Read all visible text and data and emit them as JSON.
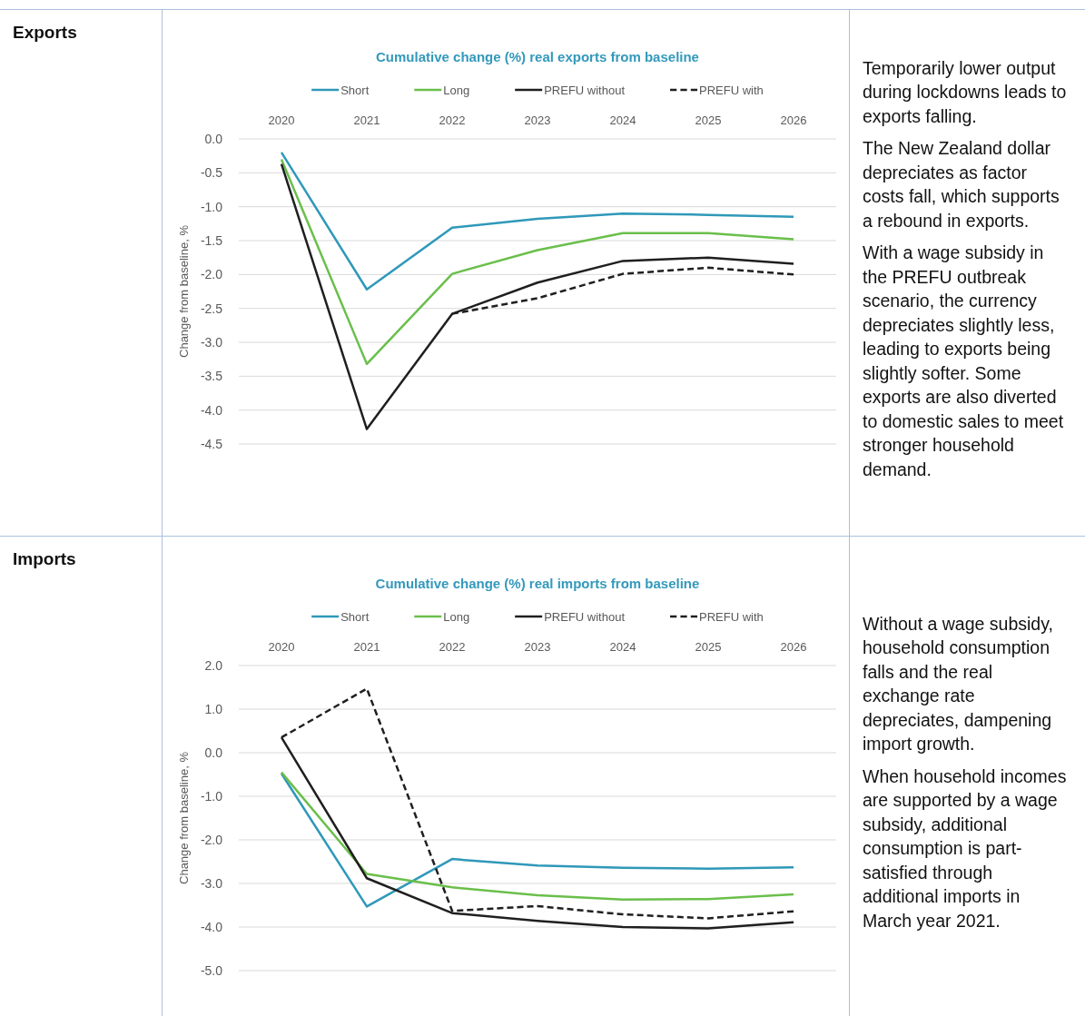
{
  "chart_data": [
    {
      "type": "other",
      "title": "Exports"
    },
    {
      "type": "line",
      "title": "Cumulative change (%) real exports from baseline",
      "ylabel": "Change from baseline, %",
      "categories": [
        "2020",
        "2021",
        "2022",
        "2023",
        "2024",
        "2025",
        "2026"
      ],
      "series": [
        {
          "name": "Short",
          "color": "#2f98b9",
          "values": [
            -0.2,
            -2.22,
            -1.31,
            -1.18,
            -1.1,
            -1.12,
            -1.15
          ]
        },
        {
          "name": "Long",
          "color": "#6abf4b",
          "values": [
            -0.3,
            -3.32,
            -1.99,
            -1.64,
            -1.39,
            -1.39,
            -1.48
          ]
        },
        {
          "name": "PREFU without",
          "color": "#1f1f1f",
          "values": [
            -0.37,
            -4.28,
            -2.58,
            -2.12,
            -1.8,
            -1.75,
            -1.84
          ]
        },
        {
          "name": "PREFU with",
          "color": "#1f1f1f",
          "line_style": "dashed",
          "values": [
            null,
            null,
            -2.58,
            -2.35,
            -1.99,
            -1.9,
            -2.0
          ]
        }
      ],
      "ylim": [
        -4.5,
        0
      ],
      "yticks": [
        {
          "value": 0,
          "label": "0.0"
        },
        {
          "value": -0.5,
          "label": "-0.5"
        },
        {
          "value": -1,
          "label": "-1.0"
        },
        {
          "value": -1.5,
          "label": "-1.5"
        },
        {
          "value": -2,
          "label": "-2.0"
        },
        {
          "value": -2.5,
          "label": "-2.5"
        },
        {
          "value": -3,
          "label": "-3.0"
        },
        {
          "value": -3.5,
          "label": "-3.5"
        },
        {
          "value": -4,
          "label": "-4.0"
        },
        {
          "value": -4.5,
          "label": "-4.5"
        }
      ],
      "grid": "y",
      "legend": "top",
      "line_style": "solid"
    },
    {
      "type": "other",
      "annotations": [
        "Temporarily lower output during lockdowns leads to exports falling.",
        "The New Zealand dollar depreciates as factor costs fall, which supports a rebound in exports.",
        "With a wage subsidy in the PREFU outbreak scenario, the currency depreciates slightly less, leading to exports being slightly softer. Some exports are also diverted to domestic sales to meet stronger household demand."
      ]
    },
    {
      "type": "other",
      "title": "Imports"
    },
    {
      "type": "line",
      "title": "Cumulative change (%) real imports from baseline",
      "ylabel": "Change from baseline, %",
      "categories": [
        "2020",
        "2021",
        "2022",
        "2023",
        "2024",
        "2025",
        "2026"
      ],
      "series": [
        {
          "name": "Short",
          "color": "#2f98b9",
          "values": [
            -0.48,
            -3.53,
            -2.44,
            -2.59,
            -2.64,
            -2.66,
            -2.63
          ]
        },
        {
          "name": "Long",
          "color": "#6abf4b",
          "values": [
            -0.45,
            -2.78,
            -3.09,
            -3.27,
            -3.37,
            -3.36,
            -3.25
          ]
        },
        {
          "name": "PREFU without",
          "color": "#1f1f1f",
          "values": [
            0.35,
            -2.88,
            -3.68,
            -3.86,
            -4.0,
            -4.03,
            -3.89
          ]
        },
        {
          "name": "PREFU with",
          "color": "#1f1f1f",
          "line_style": "dashed",
          "values": [
            0.35,
            1.47,
            -3.63,
            -3.52,
            -3.71,
            -3.8,
            -3.64
          ]
        }
      ],
      "ylim": [
        -5,
        2
      ],
      "yticks": [
        {
          "value": 2,
          "label": "2.0"
        },
        {
          "value": 1,
          "label": "1.0"
        },
        {
          "value": 0,
          "label": "0.0"
        },
        {
          "value": -1,
          "label": "-1.0"
        },
        {
          "value": -2,
          "label": "-2.0"
        },
        {
          "value": -3,
          "label": "-3.0"
        },
        {
          "value": -4,
          "label": "-4.0"
        },
        {
          "value": -5,
          "label": "-5.0"
        }
      ],
      "grid": "y",
      "legend": "top",
      "line_style": "solid"
    },
    {
      "type": "other",
      "annotations": [
        "Without a wage subsidy, household consumption falls and the real exchange rate depreciates, dampening import growth.",
        "When household incomes are supported by a wage subsidy, additional consumption is part-satisfied through additional imports in March year 2021."
      ]
    }
  ]
}
